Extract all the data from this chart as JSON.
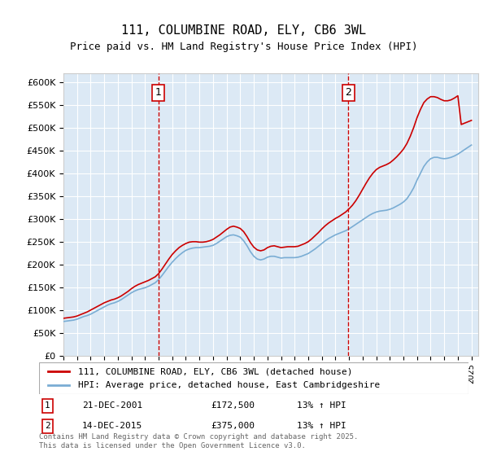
{
  "title": "111, COLUMBINE ROAD, ELY, CB6 3WL",
  "subtitle": "Price paid vs. HM Land Registry's House Price Index (HPI)",
  "ylabel": "",
  "xlabel": "",
  "ylim": [
    0,
    620000
  ],
  "yticks": [
    0,
    50000,
    100000,
    150000,
    200000,
    250000,
    300000,
    350000,
    400000,
    450000,
    500000,
    550000,
    600000
  ],
  "ytick_labels": [
    "£0",
    "£50K",
    "£100K",
    "£150K",
    "£200K",
    "£250K",
    "£300K",
    "£350K",
    "£400K",
    "£450K",
    "£500K",
    "£550K",
    "£600K"
  ],
  "xlim_start": 1995.0,
  "xlim_end": 2025.5,
  "background_color": "#ffffff",
  "plot_bg_color": "#dce9f5",
  "grid_color": "#ffffff",
  "line1_color": "#cc0000",
  "line2_color": "#7aadd4",
  "vline_color": "#cc0000",
  "marker1_x": 2001.97,
  "marker2_x": 2015.96,
  "marker1_label": "1",
  "marker2_label": "2",
  "sale1_date": "21-DEC-2001",
  "sale1_price": "£172,500",
  "sale1_hpi": "13% ↑ HPI",
  "sale2_date": "14-DEC-2015",
  "sale2_price": "£375,000",
  "sale2_hpi": "13% ↑ HPI",
  "legend_line1": "111, COLUMBINE ROAD, ELY, CB6 3WL (detached house)",
  "legend_line2": "HPI: Average price, detached house, East Cambridgeshire",
  "footer": "Contains HM Land Registry data © Crown copyright and database right 2025.\nThis data is licensed under the Open Government Licence v3.0.",
  "hpi_line": {
    "x": [
      1995.0,
      1995.25,
      1995.5,
      1995.75,
      1996.0,
      1996.25,
      1996.5,
      1996.75,
      1997.0,
      1997.25,
      1997.5,
      1997.75,
      1998.0,
      1998.25,
      1998.5,
      1998.75,
      1999.0,
      1999.25,
      1999.5,
      1999.75,
      2000.0,
      2000.25,
      2000.5,
      2000.75,
      2001.0,
      2001.25,
      2001.5,
      2001.75,
      2002.0,
      2002.25,
      2002.5,
      2002.75,
      2003.0,
      2003.25,
      2003.5,
      2003.75,
      2004.0,
      2004.25,
      2004.5,
      2004.75,
      2005.0,
      2005.25,
      2005.5,
      2005.75,
      2006.0,
      2006.25,
      2006.5,
      2006.75,
      2007.0,
      2007.25,
      2007.5,
      2007.75,
      2008.0,
      2008.25,
      2008.5,
      2008.75,
      2009.0,
      2009.25,
      2009.5,
      2009.75,
      2010.0,
      2010.25,
      2010.5,
      2010.75,
      2011.0,
      2011.25,
      2011.5,
      2011.75,
      2012.0,
      2012.25,
      2012.5,
      2012.75,
      2013.0,
      2013.25,
      2013.5,
      2013.75,
      2014.0,
      2014.25,
      2014.5,
      2014.75,
      2015.0,
      2015.25,
      2015.5,
      2015.75,
      2016.0,
      2016.25,
      2016.5,
      2016.75,
      2017.0,
      2017.25,
      2017.5,
      2017.75,
      2018.0,
      2018.25,
      2018.5,
      2018.75,
      2019.0,
      2019.25,
      2019.5,
      2019.75,
      2020.0,
      2020.25,
      2020.5,
      2020.75,
      2021.0,
      2021.25,
      2021.5,
      2021.75,
      2022.0,
      2022.25,
      2022.5,
      2022.75,
      2023.0,
      2023.25,
      2023.5,
      2023.75,
      2024.0,
      2024.25,
      2024.5,
      2024.75,
      2025.0
    ],
    "y": [
      75000,
      76000,
      77000,
      78000,
      80000,
      83000,
      86000,
      88000,
      91000,
      95000,
      99000,
      103000,
      107000,
      111000,
      114000,
      116000,
      119000,
      123000,
      128000,
      133000,
      138000,
      142000,
      145000,
      147000,
      149000,
      152000,
      156000,
      160000,
      167000,
      176000,
      186000,
      196000,
      205000,
      213000,
      220000,
      226000,
      231000,
      234000,
      236000,
      237000,
      237000,
      238000,
      239000,
      240000,
      242000,
      246000,
      251000,
      256000,
      261000,
      264000,
      265000,
      263000,
      260000,
      252000,
      241000,
      228000,
      218000,
      212000,
      210000,
      212000,
      216000,
      218000,
      218000,
      216000,
      214000,
      215000,
      215000,
      215000,
      215000,
      216000,
      218000,
      221000,
      224000,
      229000,
      234000,
      240000,
      246000,
      252000,
      257000,
      261000,
      265000,
      268000,
      271000,
      274000,
      278000,
      283000,
      288000,
      293000,
      298000,
      303000,
      308000,
      312000,
      315000,
      317000,
      318000,
      319000,
      321000,
      324000,
      328000,
      332000,
      337000,
      344000,
      355000,
      368000,
      385000,
      400000,
      415000,
      425000,
      432000,
      435000,
      435000,
      433000,
      432000,
      433000,
      435000,
      438000,
      442000,
      447000,
      452000,
      457000,
      462000
    ]
  },
  "price_line": {
    "x": [
      1995.0,
      1995.25,
      1995.5,
      1995.75,
      1996.0,
      1996.25,
      1996.5,
      1996.75,
      1997.0,
      1997.25,
      1997.5,
      1997.75,
      1998.0,
      1998.25,
      1998.5,
      1998.75,
      1999.0,
      1999.25,
      1999.5,
      1999.75,
      2000.0,
      2000.25,
      2000.5,
      2000.75,
      2001.0,
      2001.25,
      2001.5,
      2001.75,
      2002.0,
      2002.25,
      2002.5,
      2002.75,
      2003.0,
      2003.25,
      2003.5,
      2003.75,
      2004.0,
      2004.25,
      2004.5,
      2004.75,
      2005.0,
      2005.25,
      2005.5,
      2005.75,
      2006.0,
      2006.25,
      2006.5,
      2006.75,
      2007.0,
      2007.25,
      2007.5,
      2007.75,
      2008.0,
      2008.25,
      2008.5,
      2008.75,
      2009.0,
      2009.25,
      2009.5,
      2009.75,
      2010.0,
      2010.25,
      2010.5,
      2010.75,
      2011.0,
      2011.25,
      2011.5,
      2011.75,
      2012.0,
      2012.25,
      2012.5,
      2012.75,
      2013.0,
      2013.25,
      2013.5,
      2013.75,
      2014.0,
      2014.25,
      2014.5,
      2014.75,
      2015.0,
      2015.25,
      2015.5,
      2015.75,
      2016.0,
      2016.25,
      2016.5,
      2016.75,
      2017.0,
      2017.25,
      2017.5,
      2017.75,
      2018.0,
      2018.25,
      2018.5,
      2018.75,
      2019.0,
      2019.25,
      2019.5,
      2019.75,
      2020.0,
      2020.25,
      2020.5,
      2020.75,
      2021.0,
      2021.25,
      2021.5,
      2021.75,
      2022.0,
      2022.25,
      2022.5,
      2022.75,
      2023.0,
      2023.25,
      2023.5,
      2023.75,
      2024.0,
      2024.25,
      2024.5,
      2024.75,
      2025.0
    ],
    "y": [
      82000,
      83000,
      84000,
      85000,
      87000,
      90000,
      93000,
      96000,
      100000,
      104000,
      108000,
      112000,
      116000,
      119000,
      122000,
      124000,
      127000,
      131000,
      136000,
      141000,
      147000,
      152000,
      156000,
      159000,
      162000,
      165000,
      169000,
      173000,
      180000,
      190000,
      201000,
      212000,
      222000,
      230000,
      237000,
      242000,
      246000,
      249000,
      250000,
      250000,
      249000,
      249000,
      250000,
      252000,
      255000,
      260000,
      265000,
      271000,
      277000,
      282000,
      284000,
      282000,
      279000,
      272000,
      261000,
      248000,
      238000,
      232000,
      230000,
      232000,
      237000,
      240000,
      241000,
      239000,
      237000,
      238000,
      239000,
      239000,
      239000,
      240000,
      243000,
      246000,
      250000,
      256000,
      263000,
      270000,
      278000,
      285000,
      291000,
      296000,
      301000,
      305000,
      310000,
      315000,
      322000,
      330000,
      340000,
      352000,
      365000,
      378000,
      390000,
      400000,
      408000,
      413000,
      416000,
      419000,
      423000,
      429000,
      436000,
      444000,
      453000,
      465000,
      481000,
      500000,
      522000,
      540000,
      555000,
      563000,
      568000,
      568000,
      566000,
      562000,
      559000,
      559000,
      561000,
      565000,
      570000,
      507000,
      510000,
      513000,
      516000
    ]
  }
}
